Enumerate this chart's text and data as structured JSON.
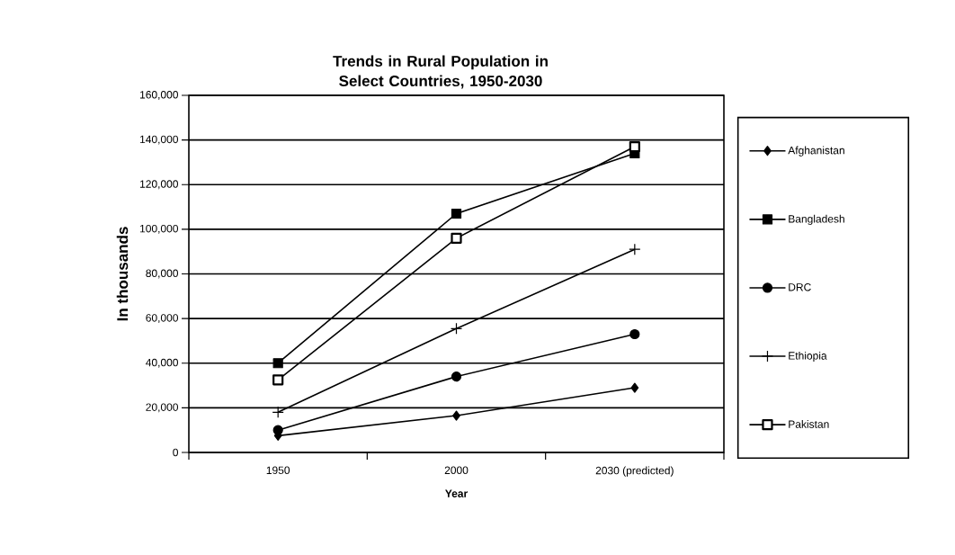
{
  "chart_data": {
    "type": "line",
    "title": "Trends in Rural Population in Select Countries, 1950-2030",
    "xlabel": "Year",
    "ylabel": "In thousands",
    "categories": [
      "1950",
      "2000",
      "2030 (predicted)"
    ],
    "series": [
      {
        "name": "Afghanistan",
        "color": "#000000",
        "marker": "diamond",
        "values": [
          7500,
          16500,
          29000
        ]
      },
      {
        "name": "Bangladesh",
        "color": "#000000",
        "marker": "square",
        "values": [
          40000,
          107000,
          134000
        ]
      },
      {
        "name": "DRC",
        "color": "#000000",
        "marker": "circle",
        "values": [
          10000,
          34000,
          53000
        ]
      },
      {
        "name": "Ethiopia",
        "color": "#000000",
        "marker": "cross",
        "values": [
          18000,
          55500,
          91000
        ]
      },
      {
        "name": "Pakistan",
        "color": "#000000",
        "marker": "square",
        "values": [
          32500,
          96000,
          137000
        ]
      }
    ],
    "ylim": [
      0,
      160000
    ],
    "yticks": [
      {
        "value": 0,
        "label": "0"
      },
      {
        "value": 20000,
        "label": "20,000"
      },
      {
        "value": 40000,
        "label": "40,000"
      },
      {
        "value": 60000,
        "label": "60,000"
      },
      {
        "value": 80000,
        "label": "80,000"
      },
      {
        "value": 100000,
        "label": "100,000"
      },
      {
        "value": 120000,
        "label": "120,000"
      },
      {
        "value": 140000,
        "label": "140,000"
      },
      {
        "value": 160000,
        "label": "160,000"
      }
    ],
    "grid": "y",
    "legend": "right",
    "line_style": "solid"
  }
}
